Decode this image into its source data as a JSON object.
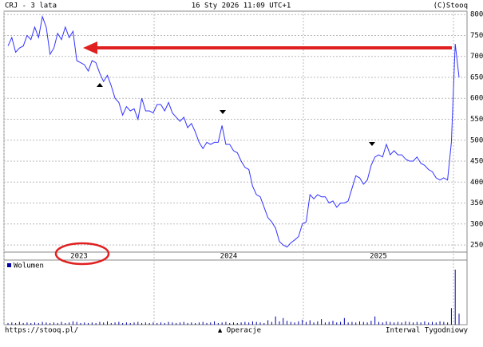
{
  "chart_data": {
    "type": "line",
    "header_left": "CRJ - 3 lata",
    "header_center": "16 Sty 2026 11:09 UTC+1",
    "header_right": "(C)Stooq",
    "values": [
      725,
      745,
      710,
      720,
      725,
      750,
      740,
      770,
      745,
      795,
      770,
      705,
      720,
      755,
      740,
      770,
      745,
      760,
      690,
      685,
      680,
      665,
      690,
      685,
      660,
      640,
      655,
      630,
      600,
      590,
      560,
      580,
      570,
      575,
      550,
      600,
      570,
      570,
      565,
      585,
      585,
      570,
      590,
      565,
      555,
      545,
      555,
      530,
      540,
      520,
      495,
      480,
      495,
      490,
      495,
      495,
      535,
      490,
      490,
      475,
      470,
      450,
      435,
      430,
      390,
      370,
      365,
      340,
      315,
      305,
      290,
      258,
      250,
      245,
      255,
      262,
      270,
      300,
      305,
      370,
      360,
      370,
      365,
      365,
      350,
      355,
      340,
      350,
      350,
      355,
      385,
      415,
      410,
      395,
      405,
      440,
      460,
      465,
      460,
      490,
      465,
      475,
      465,
      465,
      455,
      450,
      450,
      460,
      445,
      440,
      430,
      425,
      410,
      405,
      410,
      405,
      495,
      730,
      650
    ],
    "color": "#3333ff",
    "ylim": [
      233,
      808
    ],
    "yticks": [
      250,
      300,
      350,
      400,
      450,
      500,
      550,
      600,
      650,
      700,
      750,
      800
    ],
    "grid": true,
    "years": [
      "2023",
      "2024",
      "2025"
    ],
    "volume_label": "Wolumen",
    "volume": [
      3,
      4,
      3,
      5,
      3,
      4,
      3,
      4,
      3,
      5,
      4,
      3,
      4,
      3,
      5,
      3,
      4,
      6,
      5,
      3,
      4,
      3,
      4,
      3,
      5,
      4,
      6,
      3,
      4,
      5,
      3,
      4,
      3,
      4,
      5,
      3,
      4,
      3,
      4,
      3,
      4,
      3,
      5,
      4,
      3,
      4,
      5,
      3,
      4,
      3,
      4,
      5,
      3,
      4,
      6,
      3,
      4,
      5,
      3,
      4,
      3,
      4,
      5,
      4,
      6,
      5,
      4,
      3,
      8,
      5,
      15,
      6,
      12,
      7,
      5,
      4,
      6,
      9,
      5,
      8,
      4,
      6,
      10,
      4,
      5,
      7,
      4,
      5,
      12,
      4,
      5,
      4,
      6,
      5,
      4,
      7,
      15,
      5,
      4,
      6,
      5,
      4,
      5,
      4,
      6,
      5,
      4,
      5,
      4,
      6,
      4,
      5,
      4,
      6,
      5,
      4,
      30,
      100,
      20
    ],
    "vlim": [
      0,
      100
    ],
    "footer_left": "https://stooq.pl/",
    "footer_center": "▲ Operacje",
    "footer_right": "Interwal Tygodniowy"
  }
}
